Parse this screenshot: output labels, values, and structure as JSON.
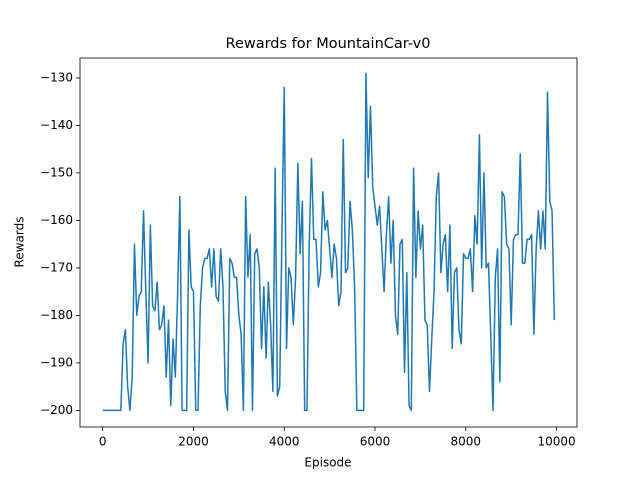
{
  "chart_data": {
    "type": "line",
    "title": "Rewards for MountainCar-v0",
    "xlabel": "Episode",
    "ylabel": "Rewards",
    "x": [
      0,
      50,
      100,
      150,
      200,
      250,
      300,
      350,
      400,
      450,
      500,
      550,
      600,
      650,
      700,
      750,
      800,
      850,
      900,
      950,
      1000,
      1050,
      1100,
      1150,
      1200,
      1250,
      1300,
      1350,
      1400,
      1450,
      1500,
      1550,
      1600,
      1650,
      1700,
      1750,
      1800,
      1850,
      1900,
      1950,
      2000,
      2050,
      2100,
      2150,
      2200,
      2250,
      2300,
      2350,
      2400,
      2450,
      2500,
      2550,
      2600,
      2650,
      2700,
      2750,
      2800,
      2850,
      2900,
      2950,
      3000,
      3050,
      3100,
      3150,
      3200,
      3250,
      3300,
      3350,
      3400,
      3450,
      3500,
      3550,
      3600,
      3650,
      3700,
      3750,
      3800,
      3850,
      3900,
      3950,
      4000,
      4050,
      4100,
      4150,
      4200,
      4250,
      4300,
      4350,
      4400,
      4450,
      4500,
      4550,
      4600,
      4650,
      4700,
      4750,
      4800,
      4850,
      4900,
      4950,
      5000,
      5050,
      5100,
      5150,
      5200,
      5250,
      5300,
      5350,
      5400,
      5450,
      5500,
      5550,
      5600,
      5650,
      5700,
      5750,
      5800,
      5850,
      5900,
      5950,
      6000,
      6050,
      6100,
      6150,
      6200,
      6250,
      6300,
      6350,
      6400,
      6450,
      6500,
      6550,
      6600,
      6650,
      6700,
      6750,
      6800,
      6850,
      6900,
      6950,
      7000,
      7050,
      7100,
      7150,
      7200,
      7250,
      7300,
      7350,
      7400,
      7450,
      7500,
      7550,
      7600,
      7650,
      7700,
      7750,
      7800,
      7850,
      7900,
      7950,
      8000,
      8050,
      8100,
      8150,
      8200,
      8250,
      8300,
      8350,
      8400,
      8450,
      8500,
      8550,
      8600,
      8650,
      8700,
      8750,
      8800,
      8850,
      8900,
      8950,
      9000,
      9050,
      9100,
      9150,
      9200,
      9250,
      9300,
      9350,
      9400,
      9450,
      9500,
      9550,
      9600,
      9650,
      9700,
      9750,
      9800,
      9850,
      9900,
      9950
    ],
    "series": [
      {
        "color": "#1f77b4",
        "values": [
          -200,
          -200,
          -200,
          -200,
          -200,
          -200,
          -200,
          -200,
          -200,
          -186,
          -183,
          -195,
          -200,
          -193,
          -165,
          -180,
          -176,
          -175,
          -158,
          -175,
          -190,
          -161,
          -178,
          -179,
          -173,
          -183,
          -182,
          -178,
          -193,
          -181,
          -199,
          -185,
          -193,
          -176,
          -155,
          -200,
          -200,
          -200,
          -162,
          -174,
          -175,
          -200,
          -200,
          -178,
          -170,
          -168,
          -168,
          -166,
          -174,
          -166,
          -176,
          -177,
          -166,
          -174,
          -196,
          -200,
          -168,
          -169,
          -172,
          -172,
          -180,
          -184,
          -200,
          -155,
          -172,
          -163,
          -200,
          -167,
          -166,
          -170,
          -187,
          -174,
          -189,
          -173,
          -182,
          -196,
          -149,
          -197,
          -195,
          -162,
          -132,
          -187,
          -170,
          -172,
          -182,
          -172,
          -148,
          -167,
          -156,
          -200,
          -200,
          -165,
          -147,
          -164,
          -164,
          -174,
          -171,
          -154,
          -162,
          -160,
          -166,
          -172,
          -165,
          -168,
          -178,
          -175,
          -143,
          -171,
          -170,
          -156,
          -162,
          -174,
          -200,
          -200,
          -200,
          -200,
          -129,
          -151,
          -136,
          -153,
          -157,
          -161,
          -157,
          -166,
          -175,
          -163,
          -155,
          -169,
          -160,
          -180,
          -184,
          -165,
          -164,
          -192,
          -171,
          -199,
          -200,
          -149,
          -172,
          -158,
          -166,
          -161,
          -181,
          -182,
          -196,
          -185,
          -175,
          -155,
          -150,
          -171,
          -165,
          -163,
          -175,
          -161,
          -187,
          -171,
          -170,
          -183,
          -186,
          -167,
          -168,
          -168,
          -166,
          -175,
          -159,
          -165,
          -142,
          -170,
          -150,
          -170,
          -169,
          -184,
          -200,
          -172,
          -166,
          -194,
          -154,
          -155,
          -165,
          -166,
          -182,
          -164,
          -163,
          -163,
          -146,
          -169,
          -169,
          -164,
          -164,
          -163,
          -184,
          -166,
          -158,
          -166,
          -158,
          -166,
          -133,
          -156,
          -158,
          -181
        ]
      }
    ],
    "xlim": [
      -500,
      10450
    ],
    "ylim": [
      -203.5,
      -125.8
    ],
    "xticks": [
      0,
      2000,
      4000,
      6000,
      8000,
      10000
    ],
    "yticks": [
      {
        "value": -200,
        "label": "−200"
      },
      {
        "value": -190,
        "label": "−190"
      },
      {
        "value": -180,
        "label": "−180"
      },
      {
        "value": -170,
        "label": "−170"
      },
      {
        "value": -160,
        "label": "−160"
      },
      {
        "value": -150,
        "label": "−150"
      },
      {
        "value": -140,
        "label": "−140"
      },
      {
        "value": -130,
        "label": "−130"
      }
    ]
  }
}
